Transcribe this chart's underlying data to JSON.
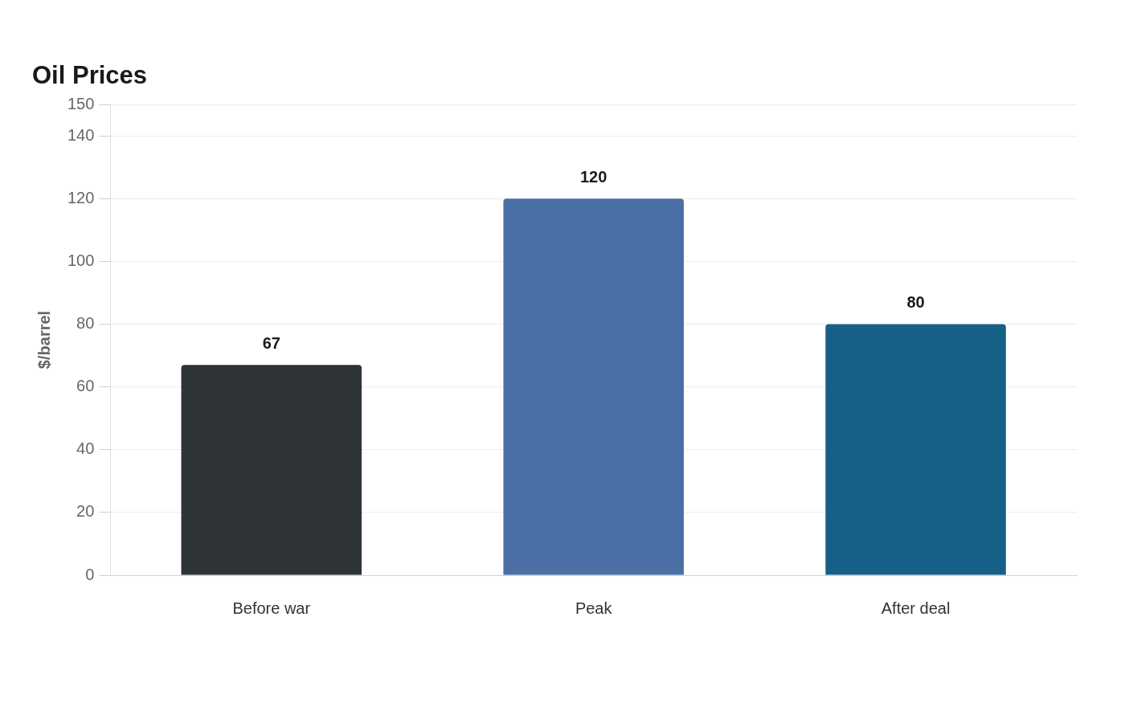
{
  "chart_data": {
    "type": "bar",
    "title": "Oil Prices",
    "ylabel": "$/barrel",
    "categories": [
      "Before war",
      "Peak",
      "After deal"
    ],
    "values": [
      67,
      120,
      80
    ],
    "colors": [
      "#2e3436",
      "#4a6fa5",
      "#166088"
    ],
    "ylim": [
      0,
      150
    ],
    "yticks": [
      0,
      20,
      40,
      60,
      80,
      100,
      120,
      140,
      150
    ],
    "grid": "y",
    "data_labels": true,
    "legend": false
  }
}
